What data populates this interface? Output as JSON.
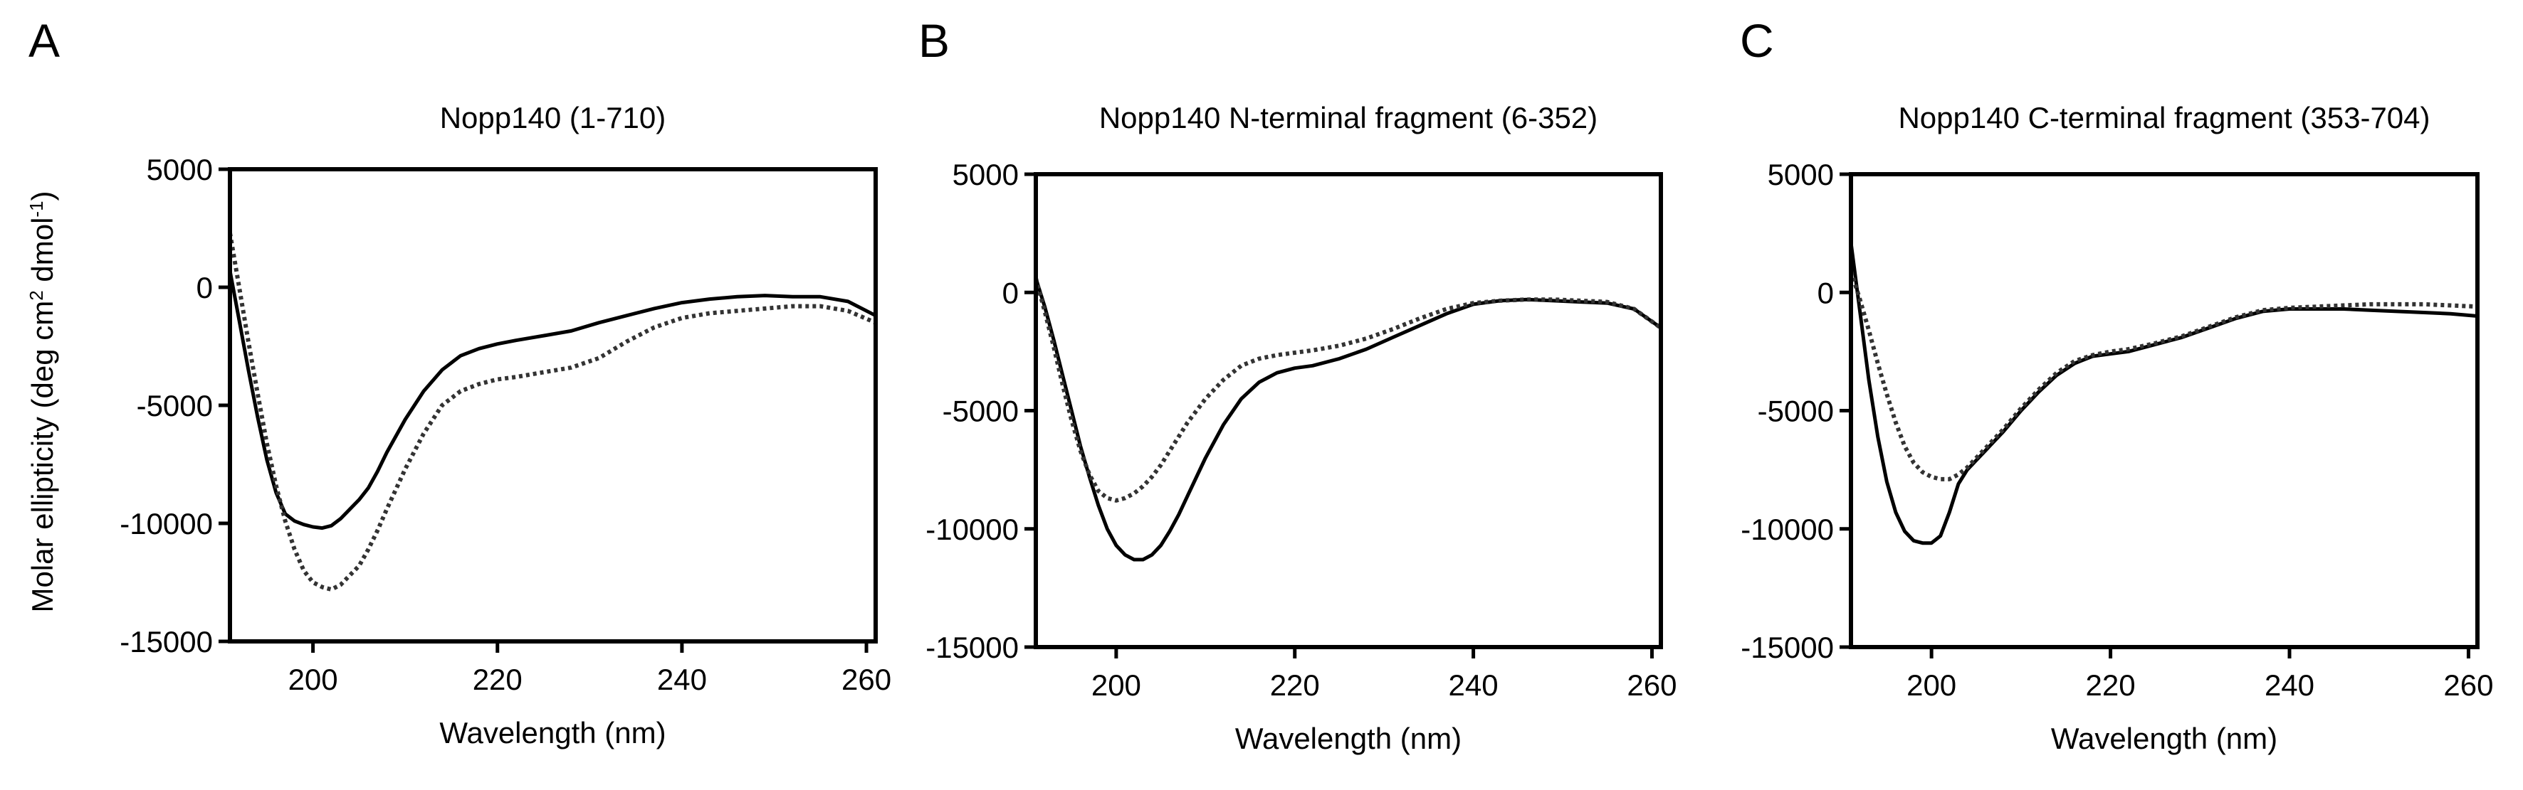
{
  "figure": {
    "shared_ylabel": "Molar ellipticity (deg cm",
    "shared_ylabel_sup1": "2",
    "shared_ylabel_mid": " dmol",
    "shared_ylabel_sup2": "-1",
    "shared_ylabel_end": ")"
  },
  "chart_data": [
    {
      "panel_label": "A",
      "type": "line",
      "title": "Nopp140 (1-710)",
      "xlabel": "Wavelength (nm)",
      "ylabel": "Molar ellipticity (deg cm² dmol⁻¹)",
      "xlim": [
        191,
        261
      ],
      "ylim": [
        -15000,
        5000
      ],
      "xticks": [
        200,
        220,
        240,
        260
      ],
      "yticks": [
        5000,
        0,
        -5000,
        -10000,
        -15000
      ],
      "series": [
        {
          "name": "solid",
          "style": "solid",
          "x": [
            191,
            192,
            193,
            194,
            195,
            196,
            197,
            198,
            199,
            200,
            201,
            202,
            203,
            204,
            205,
            206,
            207,
            208,
            210,
            212,
            214,
            216,
            218,
            220,
            222,
            225,
            228,
            231,
            234,
            237,
            240,
            243,
            246,
            249,
            252,
            255,
            258,
            261
          ],
          "y": [
            700,
            -1400,
            -3500,
            -5500,
            -7300,
            -8700,
            -9600,
            -9900,
            -10050,
            -10150,
            -10200,
            -10100,
            -9800,
            -9400,
            -9000,
            -8500,
            -7800,
            -7000,
            -5600,
            -4400,
            -3500,
            -2900,
            -2600,
            -2400,
            -2250,
            -2050,
            -1850,
            -1500,
            -1200,
            -900,
            -650,
            -500,
            -400,
            -350,
            -400,
            -400,
            -600,
            -1200
          ]
        },
        {
          "name": "dotted",
          "style": "dotted",
          "x": [
            191,
            192,
            193,
            194,
            195,
            196,
            197,
            198,
            199,
            200,
            201,
            202,
            203,
            204,
            205,
            206,
            207,
            208,
            210,
            212,
            214,
            216,
            218,
            220,
            222,
            225,
            228,
            231,
            234,
            237,
            240,
            243,
            246,
            249,
            252,
            255,
            258,
            261
          ],
          "y": [
            2300,
            0,
            -2300,
            -4500,
            -6600,
            -8400,
            -9900,
            -11100,
            -12000,
            -12500,
            -12700,
            -12800,
            -12600,
            -12200,
            -11800,
            -11100,
            -10300,
            -9400,
            -7700,
            -6200,
            -5000,
            -4400,
            -4100,
            -3900,
            -3800,
            -3600,
            -3400,
            -3000,
            -2300,
            -1700,
            -1300,
            -1100,
            -1000,
            -900,
            -800,
            -800,
            -1000,
            -1500
          ]
        }
      ]
    },
    {
      "panel_label": "B",
      "type": "line",
      "title": "Nopp140 N-terminal fragment (6-352)",
      "xlabel": "Wavelength (nm)",
      "ylabel": "",
      "xlim": [
        191,
        261
      ],
      "ylim": [
        -15000,
        5000
      ],
      "xticks": [
        200,
        220,
        240,
        260
      ],
      "yticks": [
        5000,
        0,
        -5000,
        -10000,
        -15000
      ],
      "series": [
        {
          "name": "solid",
          "style": "solid",
          "x": [
            191,
            192,
            193,
            194,
            195,
            196,
            197,
            198,
            199,
            200,
            201,
            202,
            203,
            204,
            205,
            206,
            207,
            208,
            210,
            212,
            214,
            216,
            218,
            220,
            222,
            225,
            228,
            231,
            234,
            237,
            240,
            243,
            246,
            249,
            252,
            255,
            258,
            261
          ],
          "y": [
            600,
            -600,
            -2000,
            -3500,
            -5000,
            -6500,
            -7800,
            -9000,
            -10000,
            -10700,
            -11100,
            -11300,
            -11300,
            -11100,
            -10700,
            -10100,
            -9400,
            -8600,
            -7000,
            -5600,
            -4500,
            -3800,
            -3400,
            -3200,
            -3100,
            -2800,
            -2400,
            -1900,
            -1400,
            -900,
            -500,
            -350,
            -300,
            -350,
            -400,
            -450,
            -700,
            -1500
          ]
        },
        {
          "name": "dotted",
          "style": "dotted",
          "x": [
            191,
            192,
            193,
            194,
            195,
            196,
            197,
            198,
            199,
            200,
            201,
            202,
            203,
            204,
            205,
            206,
            207,
            208,
            210,
            212,
            214,
            216,
            218,
            220,
            222,
            225,
            228,
            231,
            234,
            237,
            240,
            243,
            246,
            249,
            252,
            255,
            258,
            261
          ],
          "y": [
            600,
            -800,
            -2300,
            -3900,
            -5400,
            -6700,
            -7700,
            -8400,
            -8700,
            -8800,
            -8700,
            -8500,
            -8200,
            -7800,
            -7300,
            -6700,
            -6100,
            -5500,
            -4500,
            -3700,
            -3100,
            -2800,
            -2650,
            -2550,
            -2450,
            -2250,
            -1950,
            -1550,
            -1100,
            -700,
            -450,
            -350,
            -300,
            -300,
            -350,
            -400,
            -700,
            -1500
          ]
        }
      ]
    },
    {
      "panel_label": "C",
      "type": "line",
      "title": "Nopp140 C-terminal fragment (353-704)",
      "xlabel": "Wavelength (nm)",
      "ylabel": "",
      "xlim": [
        191,
        261
      ],
      "ylim": [
        -15000,
        5000
      ],
      "xticks": [
        200,
        220,
        240,
        260
      ],
      "yticks": [
        5000,
        0,
        -5000,
        -10000,
        -15000
      ],
      "series": [
        {
          "name": "solid",
          "style": "solid",
          "x": [
            191,
            192,
            193,
            194,
            195,
            196,
            197,
            198,
            199,
            200,
            201,
            202,
            203,
            204,
            205,
            206,
            207,
            208,
            210,
            212,
            214,
            216,
            218,
            220,
            222,
            225,
            228,
            231,
            234,
            237,
            240,
            243,
            246,
            249,
            252,
            255,
            258,
            261
          ],
          "y": [
            2100,
            -800,
            -3700,
            -6100,
            -8000,
            -9300,
            -10100,
            -10500,
            -10600,
            -10600,
            -10300,
            -9300,
            -8100,
            -7500,
            -7100,
            -6700,
            -6300,
            -5900,
            -5000,
            -4200,
            -3500,
            -3000,
            -2700,
            -2600,
            -2500,
            -2200,
            -1900,
            -1500,
            -1100,
            -800,
            -700,
            -700,
            -700,
            -750,
            -800,
            -850,
            -900,
            -1000
          ]
        },
        {
          "name": "dotted",
          "style": "dotted",
          "x": [
            191,
            192,
            193,
            194,
            195,
            196,
            197,
            198,
            199,
            200,
            201,
            202,
            203,
            204,
            205,
            206,
            207,
            208,
            210,
            212,
            214,
            216,
            218,
            220,
            222,
            225,
            228,
            231,
            234,
            237,
            240,
            243,
            246,
            249,
            252,
            255,
            258,
            261
          ],
          "y": [
            900,
            -300,
            -1600,
            -3000,
            -4300,
            -5500,
            -6500,
            -7200,
            -7600,
            -7800,
            -7900,
            -7900,
            -7700,
            -7400,
            -7000,
            -6600,
            -6200,
            -5800,
            -4900,
            -4100,
            -3400,
            -2900,
            -2650,
            -2500,
            -2400,
            -2150,
            -1850,
            -1450,
            -1050,
            -750,
            -650,
            -600,
            -550,
            -500,
            -500,
            -500,
            -550,
            -600
          ]
        }
      ]
    }
  ]
}
